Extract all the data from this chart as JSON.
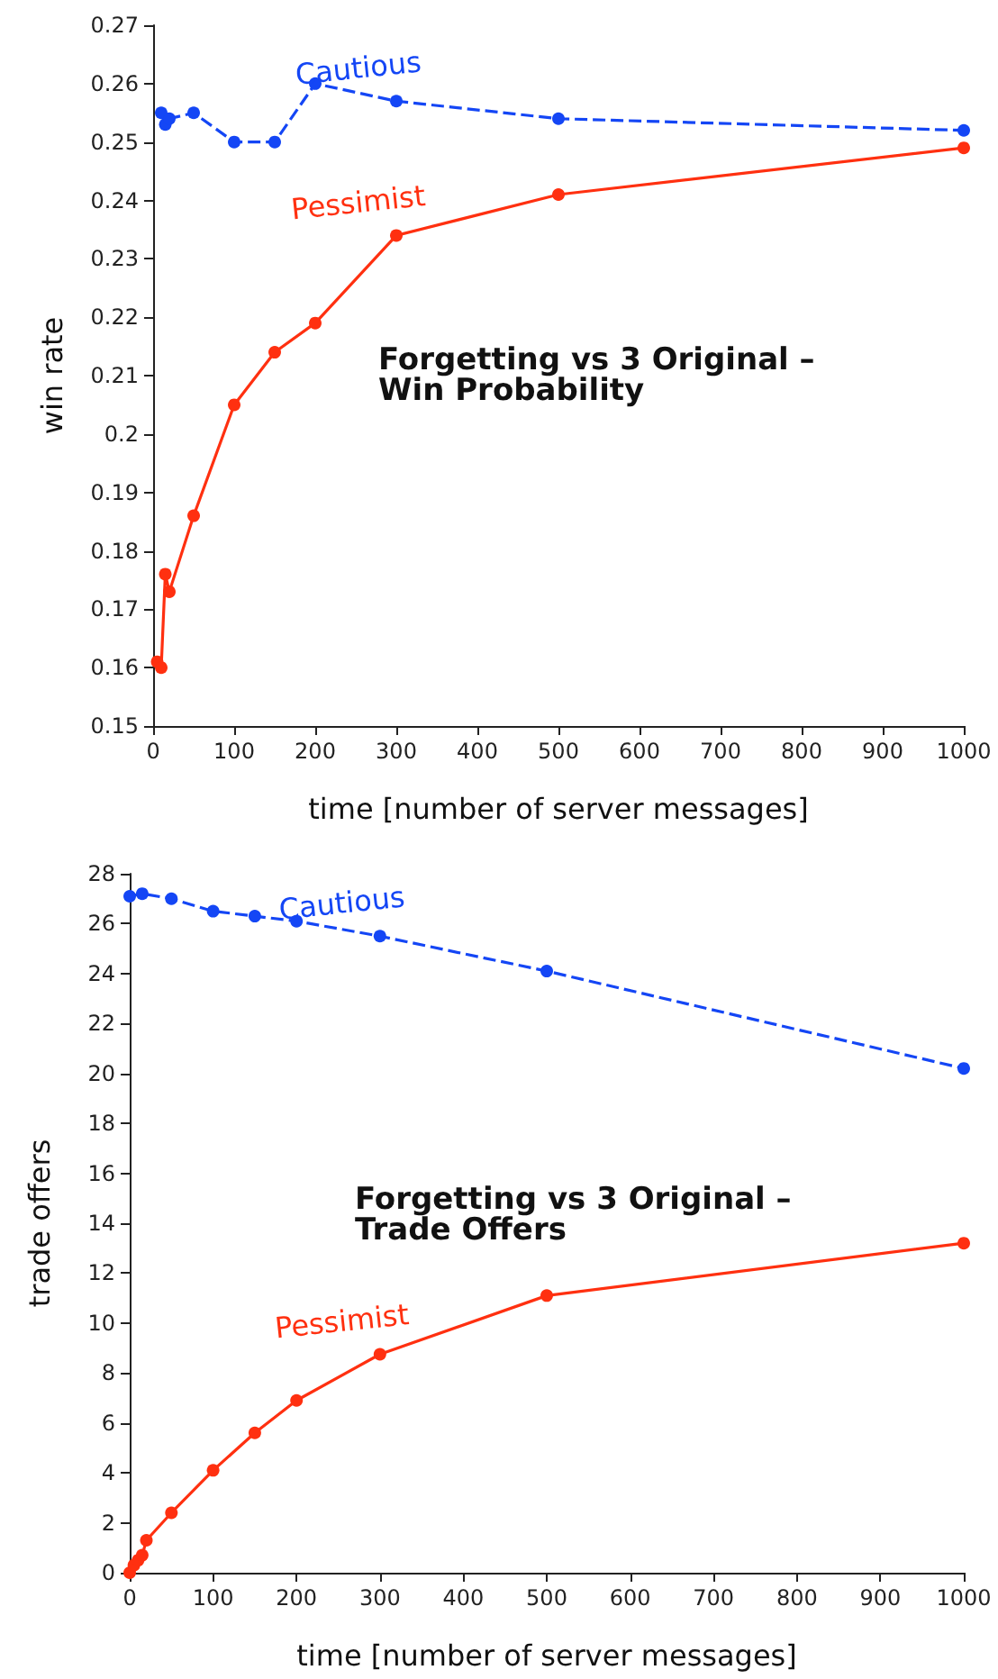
{
  "chart_data": [
    {
      "type": "line",
      "title": "Forgetting vs 3 Original – Win Probability",
      "xlabel": "time [number of server messages]",
      "ylabel": "win rate",
      "xlim": [
        0,
        1000
      ],
      "xticks": [
        0,
        100,
        200,
        300,
        400,
        500,
        600,
        700,
        800,
        900,
        1000
      ],
      "ylim": [
        0.15,
        0.27
      ],
      "yticks": [
        0.15,
        0.16,
        0.17,
        0.18,
        0.19,
        0.2,
        0.21,
        0.22,
        0.23,
        0.24,
        0.25,
        0.26,
        0.27
      ],
      "grid": false,
      "legend": false,
      "marker": "circle",
      "series": [
        {
          "name": "Cautious",
          "color": "#1446f5",
          "line_style": "dashed",
          "x": [
            10,
            15,
            20,
            50,
            100,
            150,
            200,
            300,
            500,
            1000
          ],
          "values": [
            0.255,
            0.253,
            0.254,
            0.255,
            0.25,
            0.25,
            0.26,
            0.257,
            0.254,
            0.252
          ]
        },
        {
          "name": "Pessimist",
          "color": "#ff3010",
          "line_style": "solid",
          "x": [
            5,
            10,
            15,
            20,
            50,
            100,
            150,
            200,
            300,
            500,
            1000
          ],
          "values": [
            0.161,
            0.16,
            0.176,
            0.173,
            0.186,
            0.205,
            0.214,
            0.219,
            0.234,
            0.241,
            0.249
          ]
        }
      ]
    },
    {
      "type": "line",
      "title": "Forgetting vs 3 Original – Trade Offers",
      "xlabel": "time [number of server messages]",
      "ylabel": "trade offers",
      "xlim": [
        0,
        1000
      ],
      "xticks": [
        0,
        100,
        200,
        300,
        400,
        500,
        600,
        700,
        800,
        900,
        1000
      ],
      "ylim": [
        0,
        28
      ],
      "yticks": [
        0,
        2,
        4,
        6,
        8,
        10,
        12,
        14,
        16,
        18,
        20,
        22,
        24,
        26,
        28
      ],
      "grid": false,
      "legend": false,
      "marker": "circle",
      "series": [
        {
          "name": "Cautious",
          "color": "#1446f5",
          "line_style": "dashed",
          "x": [
            0,
            15,
            50,
            100,
            150,
            200,
            300,
            500,
            1000
          ],
          "values": [
            27.1,
            27.2,
            27.0,
            26.5,
            26.3,
            26.1,
            25.5,
            24.1,
            20.2
          ]
        },
        {
          "name": "Pessimist",
          "color": "#ff3010",
          "line_style": "solid",
          "x": [
            0,
            5,
            10,
            15,
            20,
            50,
            100,
            150,
            200,
            300,
            500,
            1000
          ],
          "values": [
            0,
            0.3,
            0.5,
            0.7,
            1.3,
            2.4,
            4.1,
            5.6,
            6.9,
            8.75,
            11.1,
            13.2
          ]
        }
      ]
    }
  ]
}
